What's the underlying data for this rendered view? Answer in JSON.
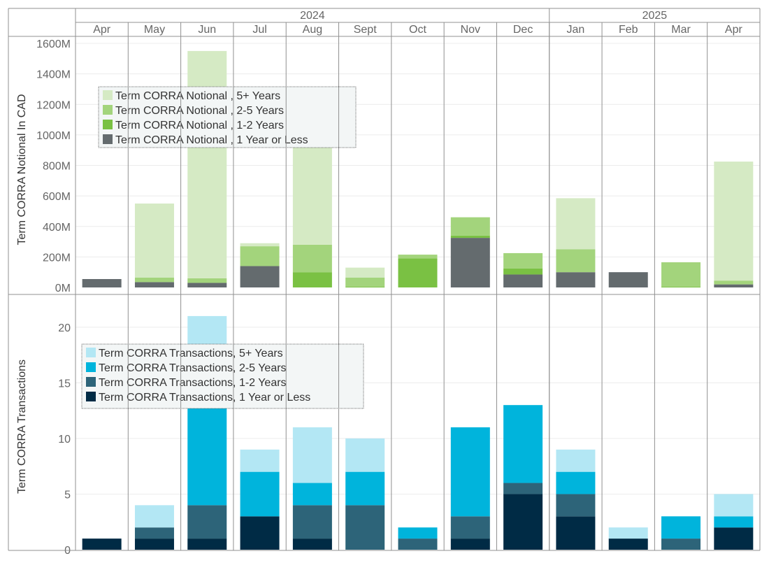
{
  "chart_data": [
    {
      "type": "bar",
      "stacked": true,
      "panel": "notional",
      "ylabel": "Term CORRA Notional In CAD",
      "ylim": [
        0,
        1600
      ],
      "yticks": [
        0,
        200,
        400,
        600,
        800,
        1000,
        1200,
        1400,
        1600
      ],
      "yticklabels": [
        "0M",
        "200M",
        "400M",
        "600M",
        "800M",
        "1000M",
        "1200M",
        "1400M",
        "1600M"
      ],
      "grid": true,
      "legend_position": "top-left",
      "legend_order": [
        3,
        2,
        1,
        0
      ],
      "series": [
        {
          "name": "Term CORRA Notional , 1 Year or Less",
          "color": "#646b6e",
          "values": [
            55,
            35,
            30,
            140,
            0,
            0,
            0,
            325,
            85,
            100,
            100,
            0,
            20
          ]
        },
        {
          "name": "Term CORRA Notional , 1-2 Years",
          "color": "#7ac143",
          "values": [
            0,
            0,
            0,
            0,
            100,
            5,
            190,
            15,
            40,
            0,
            0,
            5,
            0
          ]
        },
        {
          "name": "Term CORRA Notional , 2-5 Years",
          "color": "#a3d47c",
          "values": [
            0,
            30,
            30,
            130,
            180,
            60,
            25,
            120,
            100,
            150,
            0,
            160,
            25
          ]
        },
        {
          "name": "Term CORRA Notional , 5+ Years",
          "color": "#d5eac4",
          "values": [
            0,
            485,
            1490,
            20,
            640,
            65,
            0,
            0,
            0,
            335,
            0,
            0,
            780
          ]
        }
      ]
    },
    {
      "type": "bar",
      "stacked": true,
      "panel": "transactions",
      "ylabel": "Term CORRA Transactions",
      "ylim": [
        0,
        22
      ],
      "yticks": [
        0,
        5,
        10,
        15,
        20
      ],
      "yticklabels": [
        "0",
        "5",
        "10",
        "15",
        "20"
      ],
      "grid": true,
      "legend_position": "top-left",
      "legend_order": [
        3,
        2,
        1,
        0
      ],
      "series": [
        {
          "name": "Term CORRA Transactions, 1 Year or Less",
          "color": "#002b45",
          "values": [
            1,
            1,
            1,
            3,
            1,
            0,
            0,
            1,
            5,
            3,
            1,
            0,
            2
          ]
        },
        {
          "name": "Term CORRA Transactions, 1-2 Years",
          "color": "#2d6479",
          "values": [
            0,
            1,
            3,
            0,
            3,
            4,
            1,
            2,
            1,
            2,
            0,
            1,
            0
          ]
        },
        {
          "name": "Term CORRA Transactions, 2-5 Years",
          "color": "#00b4dc",
          "values": [
            0,
            0,
            13,
            4,
            2,
            3,
            1,
            8,
            7,
            2,
            0,
            2,
            1
          ]
        },
        {
          "name": "Term CORRA Transactions, 5+ Years",
          "color": "#b3e7f4",
          "values": [
            0,
            2,
            4,
            2,
            5,
            3,
            0,
            0,
            0,
            2,
            1,
            0,
            2
          ]
        }
      ]
    }
  ],
  "x_axis": {
    "years": [
      {
        "label": "2024",
        "span": [
          0,
          8
        ]
      },
      {
        "label": "2025",
        "span": [
          9,
          12
        ]
      }
    ],
    "months": [
      "Apr",
      "May",
      "Jun",
      "Jul",
      "Aug",
      "Sept",
      "Oct",
      "Nov",
      "Dec",
      "Jan",
      "Feb",
      "Mar",
      "Apr"
    ]
  },
  "colors": {
    "frame": "#909090",
    "gridline": "#ececec",
    "tick_text": "#666666",
    "title_text": "#333333",
    "legend_bg": "#f3f6f6",
    "legend_text": "#333333"
  }
}
